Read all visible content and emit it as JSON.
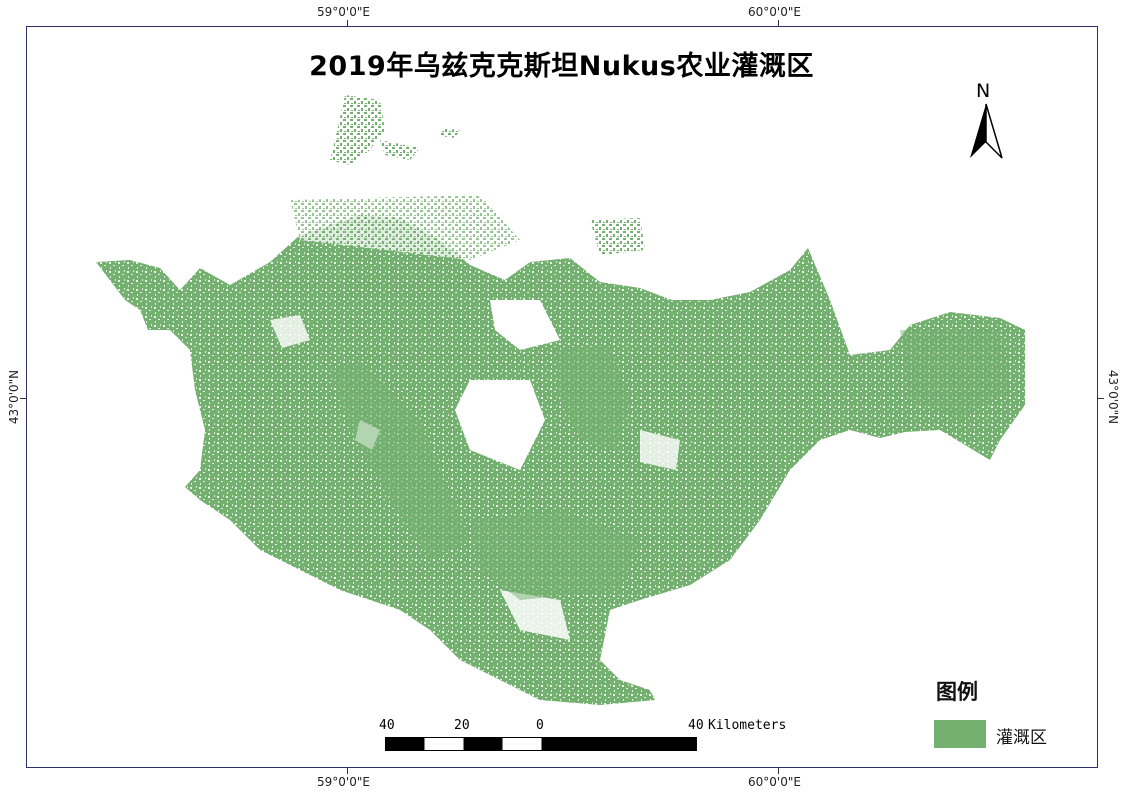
{
  "title": "2019年乌兹克克斯坦Nukus农业灌溉区",
  "graticule": {
    "top": [
      "59°0'0\"E",
      "60°0'0\"E"
    ],
    "bottom": [
      "59°0'0\"E",
      "60°0'0\"E"
    ],
    "left": [
      "43°0'0\"N"
    ],
    "right": [
      "43°0'0\"N"
    ]
  },
  "north_arrow": {
    "label": "N"
  },
  "scale_bar": {
    "labels": [
      "40",
      "20",
      "0",
      "40"
    ],
    "unit": "Kilometers"
  },
  "legend": {
    "title": "图例",
    "items": [
      {
        "label": "灌溉区",
        "color": "#74b06f"
      }
    ]
  },
  "colors": {
    "irrigated": "#74b06f",
    "frame": "#2b2f6b"
  }
}
